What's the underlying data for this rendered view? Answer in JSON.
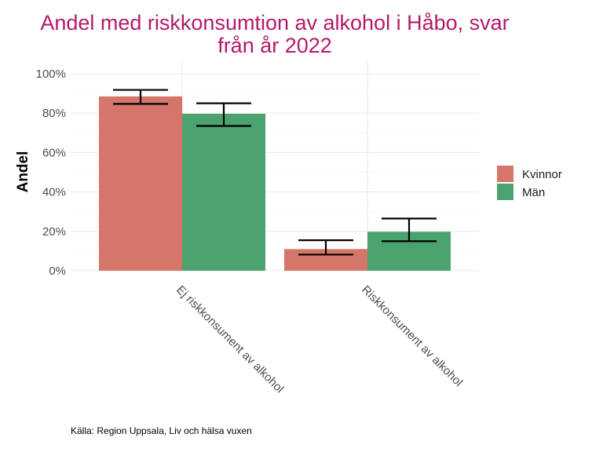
{
  "chart_data": {
    "type": "bar",
    "title_lines": [
      "Andel med riskkonsumtion av alkohol i Håbo, svar",
      "från år 2022"
    ],
    "ylabel": "Andel",
    "xlabel": "",
    "ylim": [
      0,
      1
    ],
    "yticks": [
      0,
      0.2,
      0.4,
      0.6,
      0.8,
      1.0
    ],
    "ytick_labels": [
      "0%",
      "20%",
      "40%",
      "60%",
      "80%",
      "100%"
    ],
    "categories": [
      "Ej riskkonsument av alkohol",
      "Riskkonsument av alkohol"
    ],
    "series": [
      {
        "name": "Kvinnor",
        "color": "#d5766a",
        "values": [
          0.885,
          0.11
        ],
        "err_low": [
          0.847,
          0.082
        ],
        "err_high": [
          0.918,
          0.155
        ]
      },
      {
        "name": "Män",
        "color": "#4ba26f",
        "values": [
          0.797,
          0.198
        ],
        "err_low": [
          0.735,
          0.15
        ],
        "err_high": [
          0.85,
          0.265
        ]
      }
    ],
    "grid": true,
    "legend_position": "right",
    "caption": "Källa: Region Uppsala, Liv och hälsa vuxen"
  }
}
